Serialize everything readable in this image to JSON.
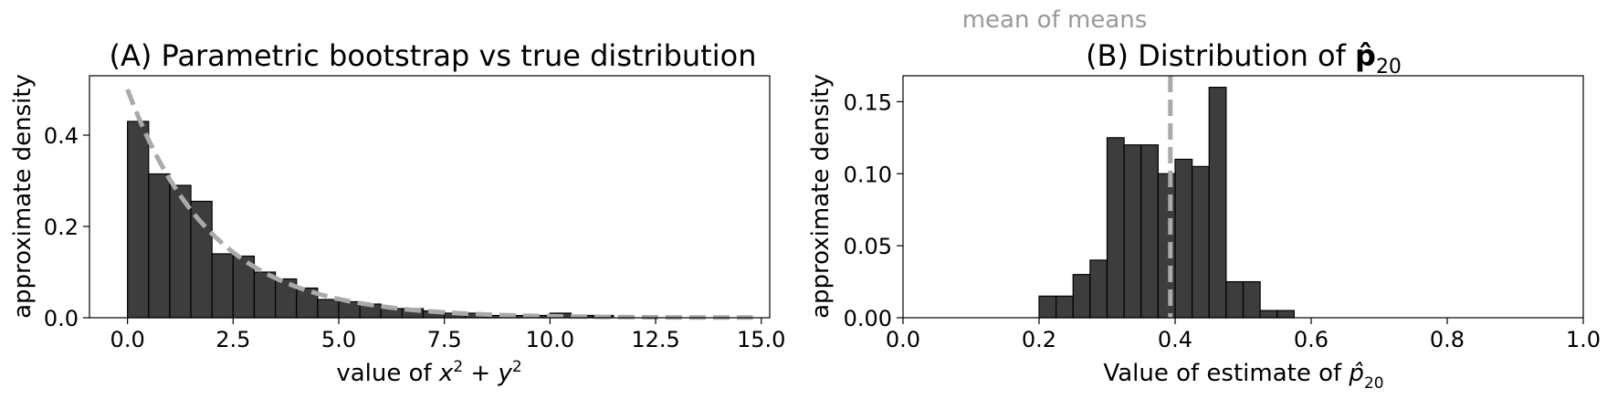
{
  "colors": {
    "bar": "#3d3d3d",
    "bar_edge": "#000000",
    "reference_line": "#aaaaaa",
    "annotation": "#999999"
  },
  "annotation": {
    "text": "mean of means"
  },
  "chart_data": [
    {
      "type": "bar",
      "title": "(A) Parametric bootstrap vs true distribution",
      "xlabel": "value of x² + y²",
      "ylabel": "approximate density",
      "xlim": [
        -0.9,
        15.2
      ],
      "ylim": [
        0,
        0.53
      ],
      "xticks": [
        "0.0",
        "2.5",
        "5.0",
        "7.5",
        "10.0",
        "12.5",
        "15.0"
      ],
      "yticks": [
        "0.0",
        "0.2",
        "0.4"
      ],
      "bin_width": 0.5,
      "bins": [
        {
          "x": 0.0,
          "y": 0.43
        },
        {
          "x": 0.5,
          "y": 0.315
        },
        {
          "x": 1.0,
          "y": 0.29
        },
        {
          "x": 1.5,
          "y": 0.255
        },
        {
          "x": 2.0,
          "y": 0.14
        },
        {
          "x": 2.5,
          "y": 0.135
        },
        {
          "x": 3.0,
          "y": 0.1
        },
        {
          "x": 3.5,
          "y": 0.085
        },
        {
          "x": 4.0,
          "y": 0.065
        },
        {
          "x": 4.5,
          "y": 0.04
        },
        {
          "x": 5.0,
          "y": 0.035
        },
        {
          "x": 5.5,
          "y": 0.03
        },
        {
          "x": 6.0,
          "y": 0.02
        },
        {
          "x": 6.5,
          "y": 0.02
        },
        {
          "x": 7.0,
          "y": 0.015
        },
        {
          "x": 7.5,
          "y": 0.01
        },
        {
          "x": 8.0,
          "y": 0.01
        },
        {
          "x": 8.5,
          "y": 0.005
        },
        {
          "x": 9.0,
          "y": 0.005
        },
        {
          "x": 9.5,
          "y": 0.005
        },
        {
          "x": 10.0,
          "y": 0.01
        },
        {
          "x": 10.5,
          "y": 0.005
        },
        {
          "x": 11.0,
          "y": 0.005
        }
      ],
      "reference_curve": {
        "kind": "exponential_density",
        "rate": 0.5,
        "x_range": [
          0,
          14.8
        ],
        "style": "dashed"
      }
    },
    {
      "type": "bar",
      "title": "(B) Distribution of p̂₂₀",
      "xlabel": "Value of estimate of p̂₂₀",
      "ylabel": "approximate density",
      "xlim": [
        0.0,
        1.0
      ],
      "ylim": [
        0,
        0.168
      ],
      "xticks": [
        "0.0",
        "0.2",
        "0.4",
        "0.6",
        "0.8",
        "1.0"
      ],
      "yticks": [
        "0.00",
        "0.05",
        "0.10",
        "0.15"
      ],
      "bin_width": 0.025,
      "bins": [
        {
          "x": 0.2,
          "y": 0.015
        },
        {
          "x": 0.225,
          "y": 0.015
        },
        {
          "x": 0.25,
          "y": 0.03
        },
        {
          "x": 0.275,
          "y": 0.04
        },
        {
          "x": 0.3,
          "y": 0.125
        },
        {
          "x": 0.325,
          "y": 0.12
        },
        {
          "x": 0.35,
          "y": 0.12
        },
        {
          "x": 0.375,
          "y": 0.1
        },
        {
          "x": 0.4,
          "y": 0.11
        },
        {
          "x": 0.425,
          "y": 0.105
        },
        {
          "x": 0.45,
          "y": 0.16
        },
        {
          "x": 0.475,
          "y": 0.025
        },
        {
          "x": 0.5,
          "y": 0.025
        },
        {
          "x": 0.525,
          "y": 0.005
        },
        {
          "x": 0.55,
          "y": 0.005
        }
      ],
      "reference_line": {
        "x": 0.393,
        "style": "dashed"
      }
    }
  ]
}
